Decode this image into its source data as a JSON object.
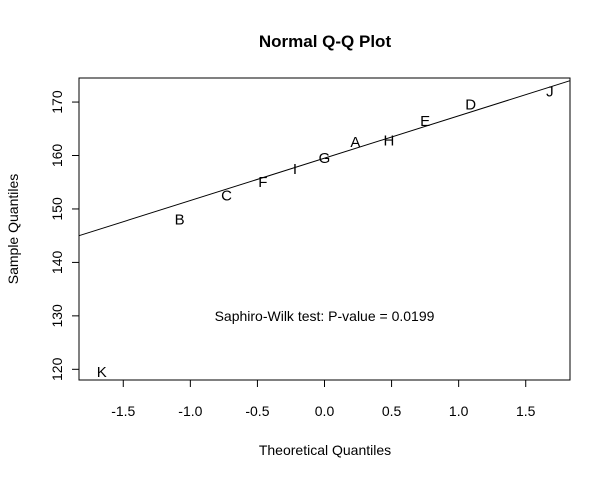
{
  "chart_data": {
    "type": "scatter",
    "title": "Normal Q-Q Plot",
    "xlabel": "Theoretical Quantiles",
    "ylabel": "Sample Quantiles",
    "xlim": [
      -1.83,
      1.83
    ],
    "ylim": [
      118,
      174.5
    ],
    "x_ticks": [
      -1.5,
      -1.0,
      -0.5,
      0.0,
      0.5,
      1.0,
      1.5
    ],
    "x_tick_labels": [
      "-1.5",
      "-1.0",
      "-0.5",
      "0.0",
      "0.5",
      "1.0",
      "1.5"
    ],
    "y_ticks": [
      120,
      130,
      140,
      150,
      160,
      170
    ],
    "y_tick_labels": [
      "120",
      "130",
      "140",
      "150",
      "160",
      "170"
    ],
    "grid": false,
    "marker": "text-labels",
    "points": [
      {
        "label": "K",
        "x": -1.66,
        "y": 119.5
      },
      {
        "label": "B",
        "x": -1.08,
        "y": 148.0
      },
      {
        "label": "C",
        "x": -0.73,
        "y": 152.5
      },
      {
        "label": "F",
        "x": -0.46,
        "y": 155.0
      },
      {
        "label": "I",
        "x": -0.22,
        "y": 157.5
      },
      {
        "label": "G",
        "x": 0.0,
        "y": 159.5
      },
      {
        "label": "A",
        "x": 0.23,
        "y": 162.5
      },
      {
        "label": "H",
        "x": 0.48,
        "y": 162.8
      },
      {
        "label": "E",
        "x": 0.75,
        "y": 166.5
      },
      {
        "label": "D",
        "x": 1.09,
        "y": 169.5
      },
      {
        "label": "J",
        "x": 1.68,
        "y": 172.0
      }
    ],
    "reference_line": {
      "type": "qq-line",
      "x_start": -1.83,
      "y_start": 145.0,
      "x_end": 1.83,
      "y_end": 174.0
    },
    "annotation": {
      "text": "Saphiro-Wilk test: P-value = 0.0199",
      "x": 0.0,
      "y": 130.0
    }
  }
}
